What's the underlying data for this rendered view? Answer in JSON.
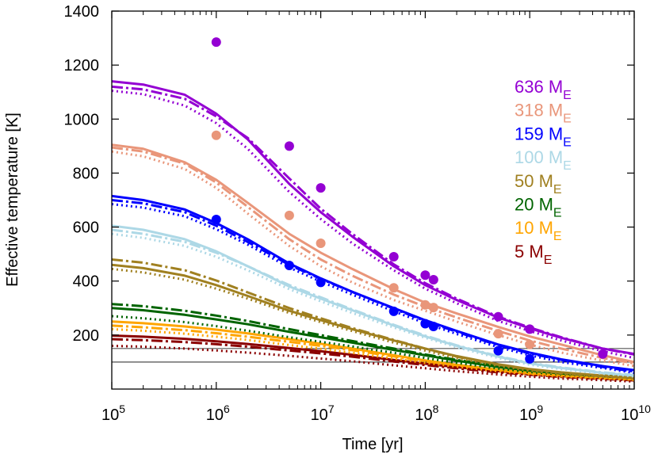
{
  "chart_data": {
    "type": "line",
    "title": "",
    "xlabel": "Time [yr]",
    "ylabel": "Effective temperature [K]",
    "x_scale": "log",
    "xlim": [
      100000,
      10000000000
    ],
    "ylim": [
      0,
      1400
    ],
    "grid": false,
    "legend_position": "right",
    "x_ticks": [
      {
        "base": "10",
        "exp": "5"
      },
      {
        "base": "10",
        "exp": "6"
      },
      {
        "base": "10",
        "exp": "7"
      },
      {
        "base": "10",
        "exp": "8"
      },
      {
        "base": "10",
        "exp": "9"
      },
      {
        "base": "10",
        "exp": "10"
      }
    ],
    "y_ticks": [
      "200",
      "400",
      "600",
      "800",
      "1000",
      "1200",
      "1400"
    ],
    "reference_lines": [
      100,
      150
    ],
    "time_points": [
      100000,
      200000,
      500000,
      1000000,
      2000000,
      5000000,
      10000000,
      20000000,
      50000000,
      100000000,
      200000000,
      500000000,
      1000000000,
      2000000000,
      5000000000,
      10000000000
    ],
    "series": [
      {
        "mass": "636",
        "unit": "M",
        "sub": "E",
        "color": "#9400d3",
        "solid": [
          1140,
          1128,
          1090,
          1020,
          925,
          760,
          655,
          565,
          455,
          385,
          330,
          265,
          225,
          190,
          150,
          130
        ],
        "dashed": [
          1120,
          1110,
          1075,
          1010,
          930,
          780,
          668,
          575,
          462,
          392,
          335,
          268,
          228,
          192,
          150,
          128
        ],
        "dotted": [
          1105,
          1092,
          1050,
          985,
          890,
          730,
          630,
          540,
          440,
          372,
          318,
          252,
          215,
          180,
          140,
          115
        ],
        "dots": [
          [
            1000000,
            1285
          ],
          [
            5000000,
            900
          ],
          [
            10000000,
            745
          ],
          [
            50000000,
            490
          ],
          [
            100000000,
            422
          ],
          [
            120000000,
            405
          ],
          [
            500000000,
            268
          ],
          [
            1000000000,
            222
          ],
          [
            5000000000,
            130
          ]
        ]
      },
      {
        "mass": "318",
        "unit": "M",
        "sub": "E",
        "color": "#e9967a",
        "solid": [
          905,
          890,
          840,
          775,
          690,
          575,
          505,
          445,
          370,
          320,
          280,
          230,
          195,
          165,
          125,
          100
        ],
        "dashed": [
          895,
          880,
          835,
          765,
          675,
          555,
          480,
          420,
          350,
          305,
          265,
          215,
          180,
          150,
          115,
          95
        ],
        "dotted": [
          880,
          862,
          815,
          745,
          650,
          530,
          455,
          395,
          330,
          290,
          250,
          200,
          165,
          135,
          105,
          85
        ],
        "dots": [
          [
            1000000,
            940
          ],
          [
            5000000,
            643
          ],
          [
            10000000,
            540
          ],
          [
            50000000,
            375
          ],
          [
            100000000,
            312
          ],
          [
            120000000,
            302
          ],
          [
            500000000,
            205
          ],
          [
            1000000000,
            165
          ]
        ]
      },
      {
        "mass": "159",
        "unit": "M",
        "sub": "E",
        "color": "#0000ff",
        "solid": [
          715,
          700,
          665,
          615,
          555,
          465,
          410,
          360,
          300,
          255,
          215,
          165,
          135,
          110,
          85,
          70
        ],
        "dashed": [
          700,
          688,
          655,
          605,
          545,
          460,
          408,
          360,
          298,
          252,
          212,
          162,
          132,
          108,
          82,
          65
        ],
        "dotted": [
          685,
          672,
          640,
          592,
          535,
          450,
          398,
          350,
          288,
          244,
          204,
          155,
          125,
          100,
          78,
          60
        ],
        "dots": [
          [
            1000000,
            628
          ],
          [
            5000000,
            458
          ],
          [
            10000000,
            395
          ],
          [
            50000000,
            288
          ],
          [
            100000000,
            242
          ],
          [
            120000000,
            232
          ],
          [
            500000000,
            142
          ],
          [
            1000000000,
            112
          ]
        ]
      },
      {
        "mass": "100",
        "unit": "M",
        "sub": "E",
        "color": "#add8e6",
        "solid": [
          605,
          590,
          555,
          510,
          455,
          380,
          335,
          292,
          235,
          195,
          160,
          120,
          95,
          78,
          60,
          50
        ],
        "dashed": [
          590,
          575,
          545,
          505,
          455,
          385,
          340,
          295,
          238,
          198,
          162,
          122,
          97,
          80,
          62,
          52
        ],
        "dotted": [
          575,
          560,
          530,
          490,
          440,
          370,
          325,
          282,
          228,
          190,
          155,
          115,
          90,
          74,
          57,
          47
        ],
        "dots": []
      },
      {
        "mass": "50",
        "unit": "M",
        "sub": "E",
        "color": "#a08020",
        "solid": [
          460,
          448,
          420,
          385,
          345,
          290,
          255,
          222,
          180,
          150,
          122,
          92,
          74,
          62,
          50,
          42
        ],
        "dashed": [
          480,
          468,
          440,
          402,
          358,
          300,
          262,
          226,
          182,
          150,
          120,
          90,
          72,
          60,
          48,
          40
        ],
        "dotted": [
          445,
          432,
          405,
          372,
          335,
          282,
          248,
          215,
          172,
          142,
          115,
          86,
          68,
          56,
          45,
          38
        ],
        "dots": []
      },
      {
        "mass": "20",
        "unit": "M",
        "sub": "E",
        "color": "#006400",
        "solid": [
          300,
          292,
          275,
          258,
          240,
          212,
          192,
          172,
          145,
          125,
          105,
          82,
          68,
          58,
          48,
          42
        ],
        "dashed": [
          315,
          307,
          290,
          272,
          252,
          222,
          200,
          178,
          150,
          128,
          108,
          85,
          70,
          60,
          50,
          44
        ],
        "dotted": [
          270,
          262,
          248,
          233,
          216,
          192,
          175,
          158,
          134,
          115,
          97,
          76,
          63,
          54,
          45,
          39
        ],
        "dots": []
      },
      {
        "mass": "10",
        "unit": "M",
        "sub": "E",
        "color": "#ffa500",
        "solid": [
          250,
          244,
          232,
          220,
          206,
          185,
          168,
          150,
          125,
          106,
          90,
          72,
          60,
          52,
          44,
          38
        ],
        "dashed": [
          235,
          229,
          218,
          207,
          194,
          175,
          160,
          144,
          121,
          103,
          88,
          70,
          58,
          50,
          42,
          36
        ],
        "dotted": [
          222,
          216,
          205,
          194,
          182,
          163,
          149,
          134,
          113,
          97,
          83,
          66,
          55,
          47,
          39,
          34
        ],
        "dots": []
      },
      {
        "mass": "5",
        "unit": "M",
        "sub": "E",
        "color": "#8b0000",
        "solid": [
          198,
          194,
          186,
          177,
          167,
          152,
          140,
          127,
          108,
          94,
          81,
          66,
          56,
          48,
          40,
          34
        ],
        "dashed": [
          185,
          181,
          174,
          166,
          157,
          143,
          132,
          120,
          102,
          89,
          77,
          62,
          53,
          45,
          38,
          32
        ],
        "dotted": [
          160,
          157,
          150,
          143,
          135,
          123,
          113,
          103,
          88,
          77,
          66,
          54,
          46,
          39,
          33,
          28
        ],
        "dots": []
      }
    ]
  }
}
